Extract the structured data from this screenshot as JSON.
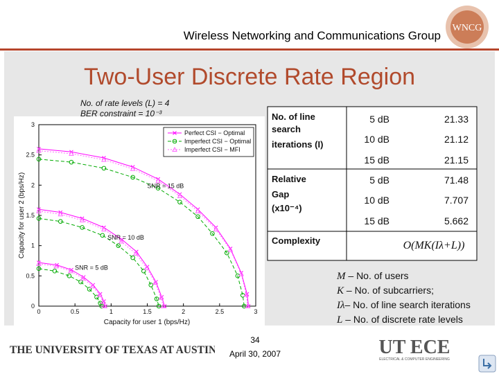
{
  "header": {
    "title": "Wireless Networking and Communications Group",
    "logo_text": "WNCG",
    "accent_color": "#b14a2c"
  },
  "slide": {
    "title": "Two-User Discrete Rate Region",
    "note_levels": "No. of rate levels (L) = 4",
    "note_ber": "BER constraint = 10⁻³"
  },
  "chart_data": {
    "type": "line",
    "title": "",
    "xlabel": "Capacity for user 1 (bps/Hz)",
    "ylabel": "Capacity for user 2 (bps/Hz)",
    "xlim": [
      0,
      3
    ],
    "ylim": [
      0,
      3
    ],
    "xticks": [
      "0",
      "0.5",
      "1",
      "1.5",
      "2",
      "2.5",
      "3"
    ],
    "yticks": [
      "0",
      "0.5",
      "1",
      "1.5",
      "2",
      "2.5",
      "3"
    ],
    "grid": false,
    "legend_position": "top-right",
    "legend": [
      "Perfect CSI − Optimal",
      "Imperfect CSI − Optimal",
      "Imperfect CSI − MFI"
    ],
    "annotations": [
      {
        "text": "SNR = 15 dB",
        "x": 1.5,
        "y": 1.95
      },
      {
        "text": "SNR = 10 dB",
        "x": 0.95,
        "y": 1.1
      },
      {
        "text": "SNR = 5 dB",
        "x": 0.5,
        "y": 0.6
      }
    ],
    "series": [
      {
        "name": "Perfect CSI − Optimal",
        "snr": "15 dB",
        "color": "#ff00ff",
        "x": [
          0,
          0.45,
          0.9,
          1.3,
          1.65,
          1.95,
          2.2,
          2.45,
          2.65,
          2.8,
          2.88,
          2.9
        ],
        "y": [
          2.6,
          2.55,
          2.45,
          2.3,
          2.1,
          1.85,
          1.6,
          1.3,
          0.95,
          0.55,
          0.2,
          0
        ]
      },
      {
        "name": "Imperfect CSI − Optimal",
        "snr": "15 dB",
        "color": "#00aa00",
        "x": [
          0,
          0.45,
          0.9,
          1.3,
          1.65,
          1.95,
          2.2,
          2.4,
          2.6,
          2.75,
          2.82,
          2.84
        ],
        "y": [
          2.43,
          2.38,
          2.28,
          2.13,
          1.95,
          1.72,
          1.48,
          1.2,
          0.88,
          0.5,
          0.18,
          0
        ]
      },
      {
        "name": "Imperfect CSI − MFI",
        "snr": "15 dB",
        "color": "#ff66ff",
        "x": [
          0,
          0.45,
          0.9,
          1.3,
          1.65,
          1.95,
          2.2,
          2.45,
          2.65,
          2.8,
          2.87,
          2.89
        ],
        "y": [
          2.57,
          2.52,
          2.42,
          2.27,
          2.07,
          1.82,
          1.57,
          1.27,
          0.93,
          0.53,
          0.19,
          0
        ]
      },
      {
        "name": "Perfect CSI − Optimal",
        "snr": "10 dB",
        "color": "#ff00ff",
        "x": [
          0,
          0.3,
          0.6,
          0.9,
          1.15,
          1.35,
          1.5,
          1.62,
          1.7,
          1.74
        ],
        "y": [
          1.6,
          1.55,
          1.45,
          1.3,
          1.1,
          0.9,
          0.65,
          0.4,
          0.15,
          0
        ]
      },
      {
        "name": "Imperfect CSI − Optimal",
        "snr": "10 dB",
        "color": "#00aa00",
        "x": [
          0,
          0.3,
          0.6,
          0.88,
          1.1,
          1.3,
          1.45,
          1.55,
          1.63,
          1.66
        ],
        "y": [
          1.45,
          1.4,
          1.3,
          1.17,
          1.0,
          0.8,
          0.58,
          0.35,
          0.12,
          0
        ]
      },
      {
        "name": "Imperfect CSI − MFI",
        "snr": "10 dB",
        "color": "#ff66ff",
        "x": [
          0,
          0.3,
          0.6,
          0.9,
          1.14,
          1.34,
          1.49,
          1.61,
          1.69,
          1.72
        ],
        "y": [
          1.57,
          1.52,
          1.42,
          1.27,
          1.07,
          0.87,
          0.63,
          0.39,
          0.14,
          0
        ]
      },
      {
        "name": "Perfect CSI − Optimal",
        "snr": "5 dB",
        "color": "#ff00ff",
        "x": [
          0,
          0.25,
          0.45,
          0.62,
          0.75,
          0.85,
          0.9,
          0.92
        ],
        "y": [
          0.72,
          0.68,
          0.6,
          0.48,
          0.35,
          0.2,
          0.08,
          0
        ]
      },
      {
        "name": "Imperfect CSI − Optimal",
        "snr": "5 dB",
        "color": "#00aa00",
        "x": [
          0,
          0.22,
          0.42,
          0.58,
          0.7,
          0.8,
          0.85,
          0.87
        ],
        "y": [
          0.62,
          0.58,
          0.5,
          0.4,
          0.28,
          0.15,
          0.05,
          0
        ]
      },
      {
        "name": "Imperfect CSI − MFI",
        "snr": "5 dB",
        "color": "#ff66ff",
        "x": [
          0,
          0.24,
          0.44,
          0.61,
          0.74,
          0.84,
          0.89,
          0.91
        ],
        "y": [
          0.7,
          0.66,
          0.58,
          0.46,
          0.33,
          0.19,
          0.07,
          0
        ]
      }
    ]
  },
  "table": {
    "line_search_label": [
      "No. of line",
      "search",
      "iterations (I)"
    ],
    "gap_label": [
      "Relative",
      "Gap",
      "(x10⁻⁴)"
    ],
    "complexity_label": "Complexity",
    "iterations": [
      {
        "snr": "5 dB",
        "value": "21.33"
      },
      {
        "snr": "10 dB",
        "value": "21.12"
      },
      {
        "snr": "15 dB",
        "value": "21.15"
      }
    ],
    "gap": [
      {
        "snr": "5 dB",
        "value": "71.48"
      },
      {
        "snr": "10 dB",
        "value": "7.707"
      },
      {
        "snr": "15 dB",
        "value": "5.662"
      }
    ],
    "complexity": "O(MK(Iλ+L))"
  },
  "definitions": [
    {
      "symbol": "M",
      "text": " – No. of users"
    },
    {
      "symbol": "K",
      "text": " – No. of subcarriers;"
    },
    {
      "symbol": "Iλ",
      "text": "– No. of line search iterations"
    },
    {
      "symbol": "L",
      "text": " – No. of discrete rate levels"
    }
  ],
  "footer": {
    "university": "THE UNIVERSITY OF TEXAS AT AUSTIN",
    "page_number": "34",
    "date": "April 30, 2007",
    "ece_logo_text": "UT ECE",
    "ece_tagline": "ELECTRICAL & COMPUTER ENGINEERING"
  }
}
